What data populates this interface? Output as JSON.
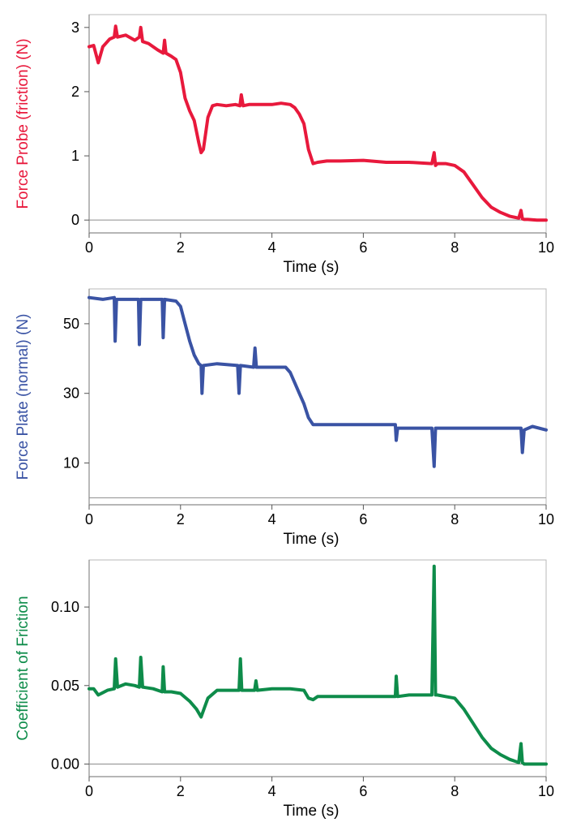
{
  "chart_data": [
    {
      "type": "line",
      "title": "",
      "xlabel": "Time (s)",
      "ylabel": "Force Probe (friction) (N)",
      "color": "#e8193c",
      "xlim": [
        0,
        10
      ],
      "ylim": [
        -0.2,
        3.2
      ],
      "xticks": [
        0,
        2,
        4,
        6,
        8,
        10
      ],
      "yticks": [
        0,
        1,
        2,
        3
      ],
      "xtick_labels": [
        "0",
        "2",
        "4",
        "6",
        "8",
        "10"
      ],
      "ytick_labels": [
        "0",
        "1",
        "2",
        "3"
      ],
      "zero_line": 0,
      "series": [
        {
          "x": [
            0,
            0.1,
            0.2,
            0.3,
            0.45,
            0.55,
            0.58,
            0.62,
            0.8,
            1.0,
            1.1,
            1.13,
            1.17,
            1.3,
            1.5,
            1.62,
            1.65,
            1.68,
            1.8,
            1.9,
            2.0,
            2.1,
            2.2,
            2.3,
            2.4,
            2.45,
            2.5,
            2.6,
            2.7,
            2.8,
            3.0,
            3.2,
            3.3,
            3.33,
            3.37,
            3.5,
            3.8,
            4.0,
            4.2,
            4.4,
            4.5,
            4.6,
            4.7,
            4.8,
            4.9,
            5.0,
            5.2,
            5.5,
            6.0,
            6.5,
            7.0,
            7.5,
            7.55,
            7.58,
            7.62,
            7.8,
            8.0,
            8.2,
            8.4,
            8.6,
            8.8,
            9.0,
            9.2,
            9.4,
            9.45,
            9.48,
            9.52,
            9.6,
            9.8,
            10.0
          ],
          "y": [
            2.7,
            2.72,
            2.45,
            2.7,
            2.82,
            2.85,
            3.02,
            2.85,
            2.88,
            2.8,
            2.85,
            3.0,
            2.78,
            2.75,
            2.65,
            2.6,
            2.8,
            2.6,
            2.55,
            2.5,
            2.3,
            1.9,
            1.7,
            1.55,
            1.2,
            1.05,
            1.1,
            1.6,
            1.78,
            1.8,
            1.78,
            1.8,
            1.78,
            1.95,
            1.78,
            1.8,
            1.8,
            1.8,
            1.82,
            1.8,
            1.75,
            1.65,
            1.5,
            1.1,
            0.88,
            0.9,
            0.92,
            0.92,
            0.93,
            0.9,
            0.9,
            0.88,
            1.05,
            0.85,
            0.88,
            0.88,
            0.85,
            0.75,
            0.55,
            0.35,
            0.2,
            0.12,
            0.06,
            0.03,
            0.15,
            0.02,
            0.01,
            0.01,
            0.0,
            0.0
          ]
        }
      ]
    },
    {
      "type": "line",
      "title": "",
      "xlabel": "Time (s)",
      "ylabel": "Force Plate (normal) (N)",
      "color": "#3a53a4",
      "xlim": [
        0,
        10
      ],
      "ylim": [
        -2,
        60
      ],
      "xticks": [
        0,
        2,
        4,
        6,
        8,
        10
      ],
      "yticks": [
        10,
        30,
        50
      ],
      "xtick_labels": [
        "0",
        "2",
        "4",
        "6",
        "8",
        "10"
      ],
      "ytick_labels": [
        "10",
        "30",
        "50"
      ],
      "zero_line": 0,
      "series": [
        {
          "x": [
            0,
            0.3,
            0.55,
            0.57,
            0.6,
            1.08,
            1.1,
            1.13,
            1.6,
            1.62,
            1.65,
            1.9,
            2.0,
            2.1,
            2.2,
            2.3,
            2.4,
            2.45,
            2.47,
            2.5,
            2.8,
            3.25,
            3.28,
            3.31,
            3.6,
            3.63,
            3.66,
            4.0,
            4.3,
            4.4,
            4.5,
            4.6,
            4.7,
            4.8,
            4.9,
            5.0,
            5.5,
            6.0,
            6.5,
            6.7,
            6.72,
            6.75,
            6.9,
            7.5,
            7.55,
            7.58,
            7.62,
            8.0,
            8.5,
            9.0,
            9.45,
            9.48,
            9.52,
            9.7,
            10.0
          ],
          "y": [
            57.5,
            57,
            57.5,
            45,
            57,
            57,
            44,
            57,
            57,
            46,
            57,
            56.5,
            55,
            50,
            45,
            41,
            38.5,
            38,
            30,
            38,
            38.5,
            38,
            30,
            38,
            37.5,
            43,
            37.5,
            37.5,
            37.5,
            36,
            33,
            30,
            27,
            23,
            21,
            21,
            21,
            21,
            21,
            21,
            16.5,
            20,
            20,
            20,
            9,
            20,
            20,
            20,
            20,
            20,
            20,
            13,
            19.5,
            20.5,
            19.5
          ]
        }
      ]
    },
    {
      "type": "line",
      "title": "",
      "xlabel": "Time (s)",
      "ylabel": "Coefficient of Friction",
      "color": "#0e8c4a",
      "xlim": [
        0,
        10
      ],
      "ylim": [
        -0.008,
        0.13
      ],
      "xticks": [
        0,
        2,
        4,
        6,
        8,
        10
      ],
      "yticks": [
        0.0,
        0.05,
        0.1
      ],
      "xtick_labels": [
        "0",
        "2",
        "4",
        "6",
        "8",
        "10"
      ],
      "ytick_labels": [
        "0.00",
        "0.05",
        "0.10"
      ],
      "zero_line": 0,
      "series": [
        {
          "x": [
            0,
            0.1,
            0.2,
            0.4,
            0.55,
            0.58,
            0.62,
            0.8,
            1.0,
            1.1,
            1.13,
            1.17,
            1.4,
            1.6,
            1.62,
            1.65,
            1.8,
            2.0,
            2.2,
            2.35,
            2.45,
            2.5,
            2.6,
            2.8,
            3.0,
            3.28,
            3.31,
            3.34,
            3.5,
            3.62,
            3.65,
            3.68,
            4.0,
            4.4,
            4.7,
            4.8,
            4.9,
            5.0,
            5.5,
            6.0,
            6.5,
            6.7,
            6.72,
            6.75,
            7.0,
            7.5,
            7.55,
            7.58,
            7.62,
            7.8,
            8.0,
            8.2,
            8.4,
            8.6,
            8.8,
            9.0,
            9.2,
            9.4,
            9.45,
            9.48,
            9.52,
            9.6,
            9.8,
            10.0
          ],
          "y": [
            0.048,
            0.048,
            0.044,
            0.047,
            0.048,
            0.067,
            0.049,
            0.051,
            0.05,
            0.049,
            0.068,
            0.049,
            0.048,
            0.046,
            0.062,
            0.046,
            0.046,
            0.045,
            0.04,
            0.035,
            0.03,
            0.034,
            0.042,
            0.047,
            0.047,
            0.047,
            0.067,
            0.047,
            0.047,
            0.047,
            0.053,
            0.047,
            0.048,
            0.048,
            0.047,
            0.042,
            0.041,
            0.043,
            0.043,
            0.043,
            0.043,
            0.043,
            0.056,
            0.043,
            0.044,
            0.044,
            0.126,
            0.044,
            0.044,
            0.043,
            0.042,
            0.035,
            0.026,
            0.017,
            0.01,
            0.006,
            0.003,
            0.001,
            0.013,
            0.001,
            0.0,
            0.0,
            0.0,
            0.0
          ]
        }
      ]
    }
  ]
}
